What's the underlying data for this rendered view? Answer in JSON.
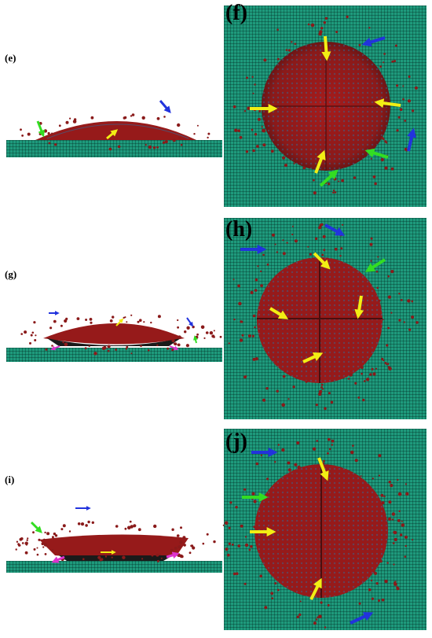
{
  "labels": {
    "e": "(e)",
    "f": "(f)",
    "g": "(g)",
    "h": "(h)",
    "i": "(i)",
    "j": "(j)"
  },
  "colors": {
    "substrate": "#1e9a7c",
    "droplet": "#9e1b1b",
    "droplet_blue": "#2d6e9e",
    "arrow_yellow": "#f2ee14",
    "arrow_green": "#33dd22",
    "arrow_blue": "#2233dd",
    "arrow_magenta": "#dd33cc"
  },
  "icons": [
    "arrow-icon",
    "droplet-particles",
    "substrate-mesh"
  ]
}
